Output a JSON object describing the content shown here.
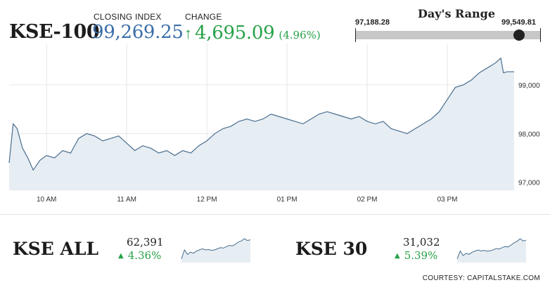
{
  "header": {
    "title": "KSE-100",
    "closing_label": "CLOSING INDEX",
    "closing_value": "99,269.25",
    "change_label": "CHANGE",
    "change_arrow": "↑",
    "change_value": "4,695.09",
    "change_pct": "(4.96%)"
  },
  "days_range": {
    "title": "Day's Range",
    "low": "97,188.28",
    "high": "99,549.81",
    "low_value": 97188.28,
    "high_value": 99549.81,
    "current_value": 99269.25
  },
  "chart_data": {
    "type": "area",
    "x_labels": [
      "10 AM",
      "11 AM",
      "12 PM",
      "01 PM",
      "02 PM",
      "03 PM"
    ],
    "y_ticks": [
      "97,000",
      "98,000",
      "99,000"
    ],
    "ylim": [
      96850,
      99850
    ],
    "time_range": [
      "09:32",
      "15:50"
    ],
    "grid": true,
    "colors": {
      "line": "#4a6e8e",
      "fill": "#e6edf3"
    },
    "points": [
      [
        "09:32",
        97400
      ],
      [
        "09:35",
        98200
      ],
      [
        "09:38",
        98100
      ],
      [
        "09:42",
        97700
      ],
      [
        "09:46",
        97500
      ],
      [
        "09:50",
        97250
      ],
      [
        "09:55",
        97450
      ],
      [
        "10:00",
        97550
      ],
      [
        "10:06",
        97500
      ],
      [
        "10:12",
        97650
      ],
      [
        "10:18",
        97600
      ],
      [
        "10:24",
        97900
      ],
      [
        "10:30",
        98000
      ],
      [
        "10:36",
        97950
      ],
      [
        "10:42",
        97850
      ],
      [
        "10:48",
        97900
      ],
      [
        "10:54",
        97950
      ],
      [
        "11:00",
        97800
      ],
      [
        "11:06",
        97650
      ],
      [
        "11:12",
        97750
      ],
      [
        "11:18",
        97700
      ],
      [
        "11:24",
        97600
      ],
      [
        "11:30",
        97650
      ],
      [
        "11:36",
        97550
      ],
      [
        "11:42",
        97650
      ],
      [
        "11:48",
        97600
      ],
      [
        "11:54",
        97750
      ],
      [
        "12:00",
        97850
      ],
      [
        "12:06",
        98000
      ],
      [
        "12:12",
        98100
      ],
      [
        "12:18",
        98150
      ],
      [
        "12:24",
        98250
      ],
      [
        "12:30",
        98300
      ],
      [
        "12:36",
        98250
      ],
      [
        "12:42",
        98300
      ],
      [
        "12:48",
        98400
      ],
      [
        "12:54",
        98350
      ],
      [
        "13:00",
        98300
      ],
      [
        "13:06",
        98250
      ],
      [
        "13:12",
        98200
      ],
      [
        "13:18",
        98300
      ],
      [
        "13:24",
        98400
      ],
      [
        "13:30",
        98450
      ],
      [
        "13:36",
        98400
      ],
      [
        "13:42",
        98350
      ],
      [
        "13:48",
        98300
      ],
      [
        "13:54",
        98350
      ],
      [
        "14:00",
        98250
      ],
      [
        "14:06",
        98200
      ],
      [
        "14:12",
        98250
      ],
      [
        "14:18",
        98100
      ],
      [
        "14:24",
        98050
      ],
      [
        "14:30",
        98000
      ],
      [
        "14:36",
        98100
      ],
      [
        "14:42",
        98200
      ],
      [
        "14:48",
        98300
      ],
      [
        "14:54",
        98450
      ],
      [
        "15:00",
        98700
      ],
      [
        "15:06",
        98950
      ],
      [
        "15:12",
        99000
      ],
      [
        "15:18",
        99100
      ],
      [
        "15:24",
        99250
      ],
      [
        "15:30",
        99350
      ],
      [
        "15:36",
        99450
      ],
      [
        "15:40",
        99550
      ],
      [
        "15:42",
        99250
      ],
      [
        "15:45",
        99270
      ],
      [
        "15:50",
        99270
      ]
    ]
  },
  "sub_indices": [
    {
      "name": "KSE ALL",
      "value": "62,391",
      "arrow": "▲",
      "pct": "4.36%",
      "spark": [
        0.1,
        0.5,
        0.3,
        0.4,
        0.35,
        0.45,
        0.5,
        0.55,
        0.5,
        0.52,
        0.48,
        0.5,
        0.55,
        0.6,
        0.58,
        0.65,
        0.7,
        0.68,
        0.75,
        0.85,
        0.9,
        1.0,
        0.92,
        0.95
      ]
    },
    {
      "name": "KSE 30",
      "value": "31,032",
      "arrow": "▲",
      "pct": "5.39%",
      "spark": [
        0.1,
        0.45,
        0.25,
        0.35,
        0.3,
        0.4,
        0.45,
        0.5,
        0.45,
        0.48,
        0.44,
        0.46,
        0.5,
        0.56,
        0.54,
        0.6,
        0.65,
        0.63,
        0.72,
        0.82,
        0.88,
        1.0,
        0.9,
        0.93
      ]
    }
  ],
  "footer": {
    "courtesy": "COURTESY: CAPITALSTAKE.COM"
  }
}
